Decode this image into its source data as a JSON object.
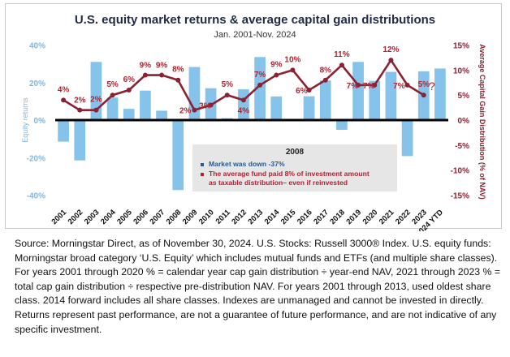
{
  "chart_data": {
    "type": "bar",
    "title": "U.S. equity market returns & average capital gain distributions",
    "subtitle": "Jan. 2001-Nov. 2024",
    "categories": [
      "2001",
      "2002",
      "2003",
      "2004",
      "2005",
      "2006",
      "2007",
      "2008",
      "2009",
      "2010",
      "2011",
      "2012",
      "2013",
      "2014",
      "2015",
      "2016",
      "2017",
      "2018",
      "2019",
      "2020",
      "2021",
      "2022",
      "2023",
      "2024 YTD"
    ],
    "series": [
      {
        "axis": "left",
        "kind": "bar",
        "color": "#86c3ea",
        "values": [
          -11.5,
          -21.5,
          31,
          12,
          6,
          15.7,
          5,
          -37.3,
          28.3,
          17,
          1,
          16.4,
          33.6,
          12.6,
          0.5,
          12.7,
          21.1,
          -5.2,
          31,
          20.9,
          25.7,
          -19.2,
          26,
          27.5
        ]
      },
      {
        "axis": "right",
        "kind": "line",
        "color": "#8b2131",
        "values": [
          4,
          2,
          2,
          5,
          6,
          9,
          9,
          8,
          2,
          3,
          5,
          4,
          7,
          9,
          10,
          6,
          8,
          11,
          7,
          7,
          12,
          7,
          5,
          null
        ],
        "labels": [
          "4%",
          "2%",
          "2%",
          "5%",
          "6%",
          "9%",
          "9%",
          "8%",
          "2%",
          "3%",
          "5%",
          "4%",
          "7%",
          "9%",
          "10%",
          "6%",
          "8%",
          "11%",
          "7%",
          "7%",
          "12%",
          "7%",
          "5%",
          "?"
        ]
      }
    ],
    "ylabel": "Equity returns",
    "ylabel_right": "Average Capital Gain Distribution (% of NAV)",
    "yticks_left": [
      "40%",
      "20%",
      "0%",
      "-20%",
      "-40%"
    ],
    "yticks_right": [
      "15%",
      "10%",
      "5%",
      "0%",
      "-5%",
      "-10%",
      "-15%"
    ],
    "ylim": [
      -40,
      40
    ],
    "ylim_right": [
      -15,
      15
    ],
    "grid": false,
    "legend": {
      "placement": "bottom-center",
      "title": "2008",
      "items": [
        {
          "text": "Market was down -37%",
          "color": "#1f5c99"
        },
        {
          "text": "The average fund paid 8% of investment amount",
          "color": "#b0232f"
        },
        {
          "text": "as taxable distribution– even if reinvested",
          "color": "#b0232f"
        }
      ]
    }
  },
  "footnote": "Source: Morningstar Direct, as of November 30, 2024. U.S. Stocks: Russell 3000® Index. U.S. equity funds: Morningstar broad category ‘U.S. Equity’ which includes mutual funds and ETFs (and multiple share classes). For years 2001 through 2020 % = calendar year cap gain distribution ÷ year-end NAV, 2021 through 2023 % = total cap gain distribution ÷ respective pre-distribution NAV. For years 2001 through 2013, used oldest share class. 2014 forward includes all share classes. Indexes are unmanaged and cannot be invested in directly. Returns represent past performance, are not a guarantee of future performance, and are not indicative of any specific investment."
}
